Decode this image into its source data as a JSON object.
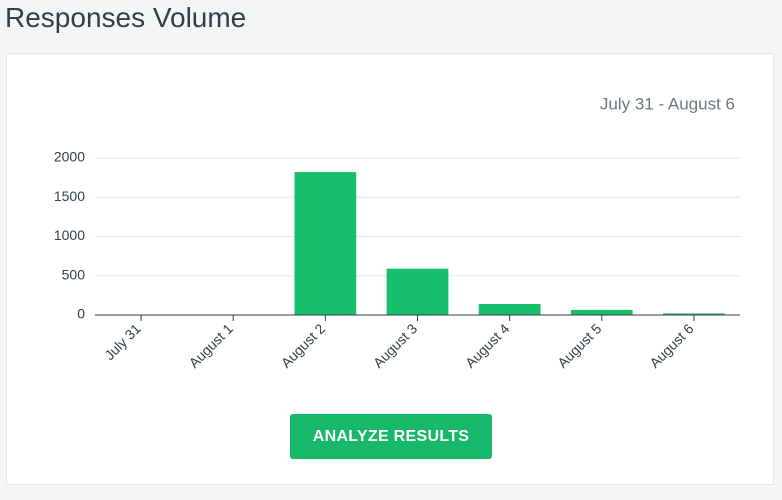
{
  "page": {
    "title": "Responses Volume",
    "date_range": "July 31 - August 6",
    "button": "ANALYZE RESULTS"
  },
  "chart_data": {
    "type": "bar",
    "categories": [
      "July 31",
      "August 1",
      "August 2",
      "August 3",
      "August 4",
      "August 5",
      "August 6"
    ],
    "values": [
      0,
      0,
      1820,
      590,
      140,
      65,
      20
    ],
    "color": "#17bf6b",
    "ylim": [
      0,
      2000
    ],
    "yticks": [
      0,
      500,
      1000,
      1500,
      2000
    ],
    "grid": true
  }
}
